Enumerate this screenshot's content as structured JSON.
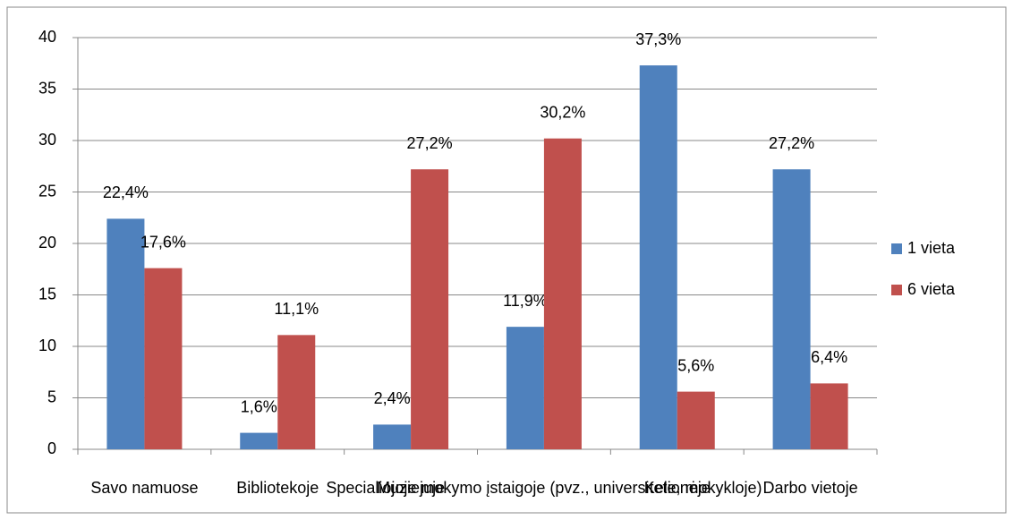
{
  "chart_data": {
    "type": "bar",
    "categories": [
      "Savo namuose",
      "Bibliotekoje",
      "Muziejuje",
      "Specialiojoje mokymo įstaigoje (pvz., universitete, mokykloje)",
      "Kelionėje",
      "Darbo vietoje"
    ],
    "series": [
      {
        "name": "1 vieta",
        "color": "#4f81bd",
        "values": [
          22.4,
          1.6,
          2.4,
          11.9,
          37.3,
          27.2
        ],
        "value_labels": [
          "22,4%",
          "1,6%",
          "2,4%",
          "11,9%",
          "37,3%",
          "27,2%"
        ]
      },
      {
        "name": "6 vieta",
        "color": "#c0504d",
        "values": [
          17.6,
          11.1,
          27.2,
          30.2,
          5.6,
          6.4
        ],
        "value_labels": [
          "17,6%",
          "11,1%",
          "27,2%",
          "30,2%",
          "5,6%",
          "6,4%"
        ]
      }
    ],
    "ylim": [
      0,
      40
    ],
    "yticks": [
      0,
      5,
      10,
      15,
      20,
      25,
      30,
      35,
      40
    ],
    "grid": true,
    "legend": "right"
  }
}
